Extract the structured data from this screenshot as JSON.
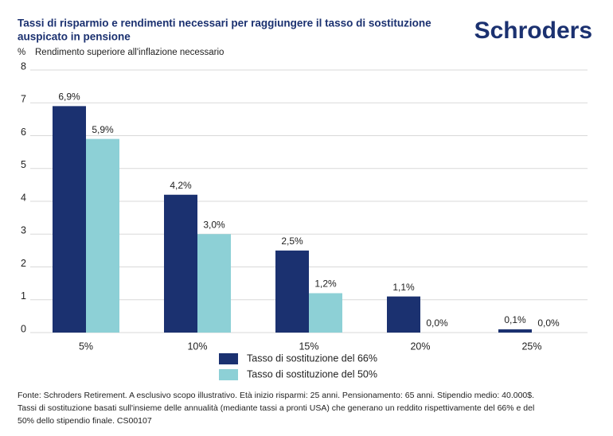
{
  "chart_data": {
    "type": "bar",
    "title_lines": [
      "Tassi di risparmio e rendimenti necessari per raggiungere il tasso di sostituzione",
      "auspicato in pensione"
    ],
    "brand": "Schroders",
    "y_unit": "%",
    "y_label": "Rendimento superiore all'inflazione necessario",
    "categories": [
      "5%",
      "10%",
      "15%",
      "20%",
      "25%"
    ],
    "series": [
      {
        "name": "Tasso di sostituzione del 66%",
        "color": "#1b3170",
        "values": [
          6.9,
          4.2,
          2.5,
          1.1,
          0.1
        ],
        "value_labels": [
          "6,9%",
          "4,2%",
          "2,5%",
          "1,1%",
          "0,1%"
        ]
      },
      {
        "name": "Tasso di sostituzione del 50%",
        "color": "#8dd0d6",
        "values": [
          5.9,
          3.0,
          1.2,
          0.0,
          0.0
        ],
        "value_labels": [
          "5,9%",
          "3,0%",
          "1,2%",
          "0,0%",
          "0,0%"
        ]
      }
    ],
    "ylim": [
      0,
      8
    ],
    "yticks": [
      0,
      1,
      2,
      3,
      4,
      5,
      6,
      7,
      8
    ],
    "grid": true,
    "footnote_lines": [
      "Fonte: Schroders Retirement. A esclusivo scopo illustrativo. Età inizio risparmi: 25 anni. Pensionamento: 65 anni. Stipendio medio: 40.000$.",
      "Tassi di sostituzione basati sull'insieme delle annualità (mediante tassi a pronti USA) che generano un reddito rispettivamente del 66% e del",
      "50% dello stipendio finale. CS00107"
    ]
  }
}
